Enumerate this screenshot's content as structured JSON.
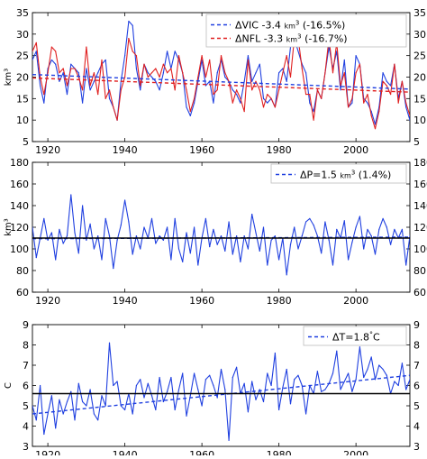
{
  "chart_data": [
    {
      "type": "line",
      "ylabel": "km³",
      "xlim": [
        1916,
        2014
      ],
      "ylim": [
        5,
        35
      ],
      "yticks": [
        5,
        10,
        15,
        20,
        25,
        30,
        35
      ],
      "xticks": [
        1920,
        1940,
        1960,
        1980,
        2000
      ],
      "grid": false,
      "legend_position": "top-right",
      "series": [
        {
          "name": "VIC",
          "color": "#2040e0",
          "x_start": 1916,
          "values": [
            24,
            26,
            18,
            14,
            22,
            24,
            23,
            19,
            21,
            16,
            23,
            22,
            21,
            14,
            22,
            17,
            19,
            21,
            23,
            24,
            15,
            13,
            10,
            19,
            25,
            33,
            32,
            22,
            17,
            23,
            21,
            20,
            19,
            17,
            21,
            26,
            22,
            26,
            24,
            21,
            13,
            11,
            14,
            19,
            24,
            18,
            19,
            14,
            21,
            24,
            20,
            19,
            17,
            16,
            14,
            19,
            25,
            19,
            21,
            23,
            15,
            14,
            15,
            13,
            21,
            22,
            19,
            27,
            29,
            26,
            23,
            21,
            14,
            12,
            17,
            15,
            21,
            27,
            22,
            26,
            17,
            24,
            13,
            14,
            25,
            23,
            15,
            14,
            12,
            9,
            13,
            21,
            19,
            18,
            23,
            15,
            19,
            13,
            10,
            11
          ]
        },
        {
          "name": "NFL",
          "color": "#e02020",
          "x_start": 1916,
          "values": [
            26,
            28,
            20,
            16,
            21,
            27,
            26,
            21,
            22,
            18,
            22,
            22,
            20,
            17,
            27,
            18,
            21,
            16,
            24,
            15,
            17,
            13,
            10,
            17,
            20,
            29,
            26,
            25,
            18,
            23,
            20,
            21,
            22,
            20,
            23,
            21,
            22,
            17,
            25,
            21,
            17,
            12,
            15,
            20,
            25,
            20,
            24,
            16,
            17,
            25,
            21,
            19,
            14,
            17,
            15,
            12,
            24,
            17,
            19,
            17,
            13,
            16,
            15,
            13,
            17,
            21,
            25,
            20,
            29,
            29,
            22,
            16,
            16,
            10,
            17,
            15,
            21,
            29,
            21,
            28,
            18,
            21,
            13,
            15,
            21,
            23,
            14,
            16,
            11,
            8,
            12,
            19,
            18,
            16,
            23,
            14,
            19,
            14,
            11,
            12
          ]
        }
      ],
      "trendlines": [
        {
          "name": "VIC trend",
          "start": 20.6,
          "end": 17.2
        },
        {
          "name": "NFL trend",
          "start": 19.8,
          "end": 16.5
        }
      ],
      "legend": [
        {
          "series": "VIC",
          "prefix": "ΔVIC -3.4 ",
          "unit": "km",
          "unit_exp": "3",
          "suffix": " (-16.5%)",
          "color": "#2040e0"
        },
        {
          "series": "NFL",
          "prefix": "ΔNFL -3.3 ",
          "unit": "km",
          "unit_exp": "3",
          "suffix": " (-16.7%)",
          "color": "#e02020"
        }
      ]
    },
    {
      "type": "line",
      "ylabel": "km³",
      "xlim": [
        1916,
        2014
      ],
      "ylim": [
        60,
        180
      ],
      "yticks": [
        60,
        80,
        100,
        120,
        140,
        160,
        180
      ],
      "xticks": [
        1920,
        1940,
        1960,
        1980,
        2000
      ],
      "grid": false,
      "legend_position": "top-right",
      "series": [
        {
          "name": "P",
          "color": "#2040e0",
          "x_start": 1916,
          "values": [
            120,
            92,
            110,
            128,
            108,
            115,
            90,
            118,
            105,
            112,
            150,
            115,
            96,
            140,
            108,
            123,
            100,
            112,
            90,
            128,
            112,
            82,
            108,
            122,
            145,
            125,
            95,
            112,
            100,
            120,
            110,
            128,
            105,
            112,
            108,
            120,
            90,
            128,
            100,
            88,
            115,
            96,
            120,
            85,
            110,
            128,
            102,
            118,
            104,
            112,
            98,
            125,
            95,
            112,
            88,
            112,
            100,
            132,
            115,
            98,
            120,
            85,
            108,
            112,
            90,
            110,
            76,
            104,
            120,
            100,
            112,
            125,
            128,
            122,
            112,
            96,
            125,
            108,
            85,
            118,
            110,
            126,
            90,
            106,
            120,
            130,
            100,
            118,
            112,
            95,
            118,
            128,
            120,
            104,
            118,
            110,
            118,
            85,
            112,
            120
          ]
        }
      ],
      "trendlines": [
        {
          "name": "P trend",
          "start": 109.4,
          "end": 110.9,
          "dashed": true
        },
        {
          "name": "P mean",
          "start": 110,
          "end": 110,
          "dashed": false
        }
      ],
      "legend": [
        {
          "series": "P",
          "prefix": "ΔP=1.5 ",
          "unit": "km",
          "unit_exp": "3",
          "suffix": "  (1.4%)",
          "color": "#2040e0"
        }
      ]
    },
    {
      "type": "line",
      "ylabel": "C",
      "xlim": [
        1916,
        2014
      ],
      "ylim": [
        3,
        9
      ],
      "yticks": [
        3,
        4,
        5,
        6,
        7,
        8,
        9
      ],
      "xticks": [
        1920,
        1940,
        1960,
        1980,
        2000
      ],
      "grid": false,
      "legend_position": "top-right",
      "series": [
        {
          "name": "T",
          "color": "#2040e0",
          "x_start": 1916,
          "values": [
            5.0,
            4.3,
            6.0,
            3.6,
            4.6,
            5.5,
            3.9,
            5.3,
            4.6,
            5.2,
            5.7,
            4.3,
            6.1,
            5.2,
            5.0,
            5.8,
            4.6,
            4.3,
            5.5,
            5.0,
            8.1,
            6.0,
            6.2,
            5.0,
            4.8,
            5.6,
            4.6,
            6.0,
            6.3,
            5.4,
            6.1,
            5.5,
            4.8,
            6.4,
            5.2,
            5.7,
            6.4,
            4.8,
            5.8,
            6.6,
            4.5,
            5.5,
            6.6,
            5.8,
            5.0,
            6.3,
            6.5,
            6.0,
            5.4,
            6.8,
            5.8,
            3.3,
            6.4,
            6.9,
            5.6,
            6.1,
            4.7,
            6.2,
            5.3,
            5.8,
            5.2,
            6.6,
            6.0,
            7.6,
            4.8,
            5.9,
            6.8,
            5.1,
            6.3,
            6.5,
            6.0,
            4.6,
            6.0,
            5.6,
            6.7,
            5.7,
            5.8,
            6.1,
            6.6,
            7.7,
            5.8,
            6.2,
            6.6,
            5.7,
            6.3,
            7.9,
            6.4,
            6.8,
            7.4,
            6.3,
            7.0,
            6.8,
            6.5,
            5.6,
            6.2,
            6.0,
            7.1,
            5.8,
            6.3,
            7.5,
            6.0
          ]
        }
      ],
      "trendlines": [
        {
          "name": "T trend",
          "start": 4.6,
          "end": 6.5,
          "dashed": true
        },
        {
          "name": "T mean",
          "start": 5.6,
          "end": 5.6,
          "dashed": false
        }
      ],
      "legend": [
        {
          "series": "T",
          "prefix": "ΔT=1.8",
          "unit": "C",
          "unit_exp": "°",
          "suffix": "",
          "color": "#2040e0"
        }
      ]
    }
  ]
}
